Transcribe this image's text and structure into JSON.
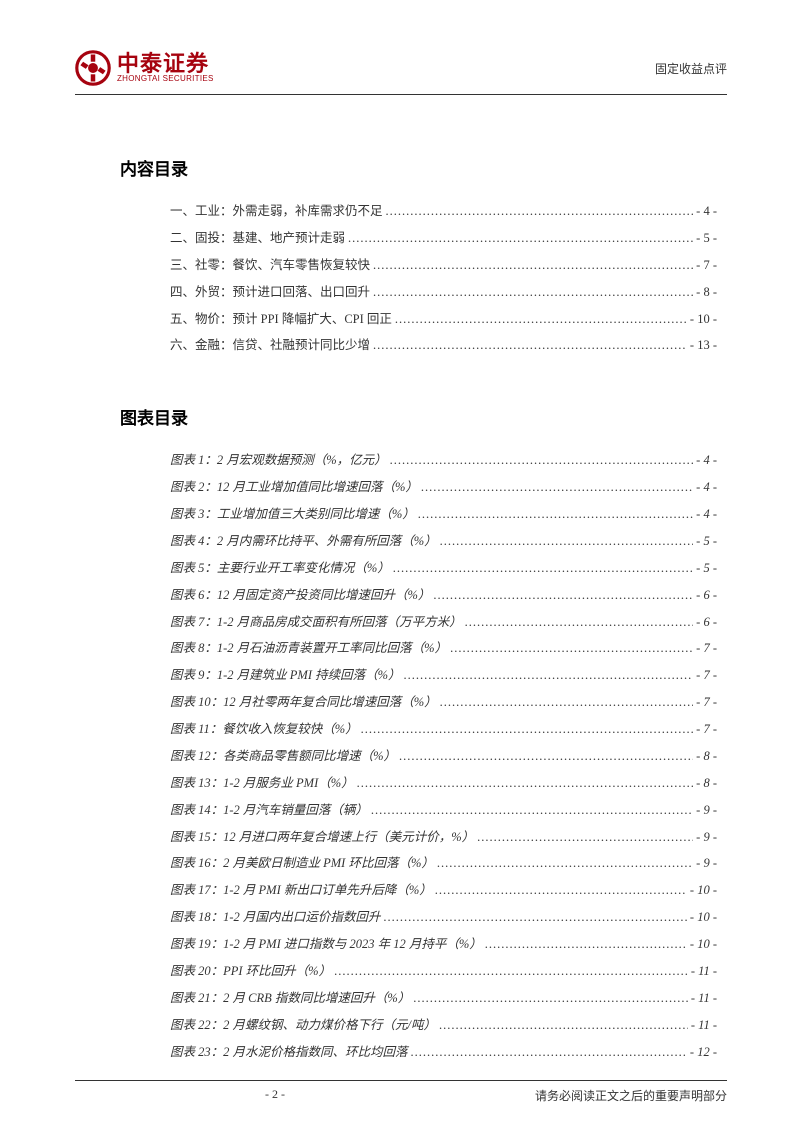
{
  "header": {
    "logo_cn": "中泰证券",
    "logo_en": "ZHONGTAI SECURITIES",
    "doc_type": "固定收益点评",
    "logo_color": "#a6030f"
  },
  "sections": {
    "contents_title": "内容目录",
    "figures_title": "图表目录"
  },
  "contents": [
    {
      "label": "一、工业：外需走弱，补库需求仍不足",
      "page": "- 4 -"
    },
    {
      "label": "二、固投：基建、地产预计走弱",
      "page": "- 5 -"
    },
    {
      "label": "三、社零：餐饮、汽车零售恢复较快",
      "page": "- 7 -"
    },
    {
      "label": "四、外贸：预计进口回落、出口回升",
      "page": "- 8 -"
    },
    {
      "label": "五、物价：预计 PPI 降幅扩大、CPI 回正",
      "page": "- 10 -"
    },
    {
      "label": "六、金融：信贷、社融预计同比少增",
      "page": "- 13 -"
    }
  ],
  "figures": [
    {
      "label": "图表 1：2 月宏观数据预测（%，亿元）",
      "page": "- 4 -"
    },
    {
      "label": "图表 2：12 月工业增加值同比增速回落（%）",
      "page": "- 4 -"
    },
    {
      "label": "图表 3：工业增加值三大类别同比增速（%）",
      "page": "- 4 -"
    },
    {
      "label": "图表 4：2 月内需环比持平、外需有所回落（%）",
      "page": "- 5 -"
    },
    {
      "label": "图表 5：主要行业开工率变化情况（%）",
      "page": "- 5 -"
    },
    {
      "label": "图表 6：12 月固定资产投资同比增速回升（%）",
      "page": "- 6 -"
    },
    {
      "label": "图表 7：1-2 月商品房成交面积有所回落（万平方米）",
      "page": "- 6 -"
    },
    {
      "label": "图表 8：1-2 月石油沥青装置开工率同比回落（%）",
      "page": "- 7 -"
    },
    {
      "label": "图表 9：1-2 月建筑业 PMI 持续回落（%）",
      "page": "- 7 -"
    },
    {
      "label": "图表 10：12 月社零两年复合同比增速回落（%）",
      "page": "- 7 -"
    },
    {
      "label": "图表 11：餐饮收入恢复较快（%）",
      "page": "- 7 -"
    },
    {
      "label": "图表 12：各类商品零售额同比增速（%）",
      "page": "- 8 -"
    },
    {
      "label": "图表 13：1-2 月服务业 PMI（%）",
      "page": "- 8 -"
    },
    {
      "label": "图表 14：1-2 月汽车销量回落（辆）",
      "page": "- 9 -"
    },
    {
      "label": "图表 15：12 月进口两年复合增速上行（美元计价，%）",
      "page": "- 9 -"
    },
    {
      "label": "图表 16：2 月美欧日制造业 PMI 环比回落（%）",
      "page": "- 9 -"
    },
    {
      "label": "图表 17：1-2 月 PMI 新出口订单先升后降（%）",
      "page": "- 10 -"
    },
    {
      "label": "图表 18：1-2 月国内出口运价指数回升",
      "page": "- 10 -"
    },
    {
      "label": "图表 19：1-2 月 PMI 进口指数与 2023 年 12 月持平（%）",
      "page": "- 10 -"
    },
    {
      "label": "图表 20：PPI 环比回升（%）",
      "page": "- 11 -"
    },
    {
      "label": "图表 21：2 月 CRB 指数同比增速回升（%）",
      "page": "- 11 -"
    },
    {
      "label": "图表 22：2 月螺纹钢、动力煤价格下行（元/吨）",
      "page": "- 11 -"
    },
    {
      "label": "图表 23：2 月水泥价格指数同、环比均回落",
      "page": "- 12 -"
    }
  ],
  "footer": {
    "page_number": "- 2 -",
    "disclaimer": "请务必阅读正文之后的重要声明部分"
  },
  "style": {
    "text_color": "#333333",
    "accent_color": "#a6030f",
    "background": "#ffffff",
    "body_fontsize_pt": 12.5,
    "title_fontsize_pt": 17,
    "line_height": 2.15
  }
}
